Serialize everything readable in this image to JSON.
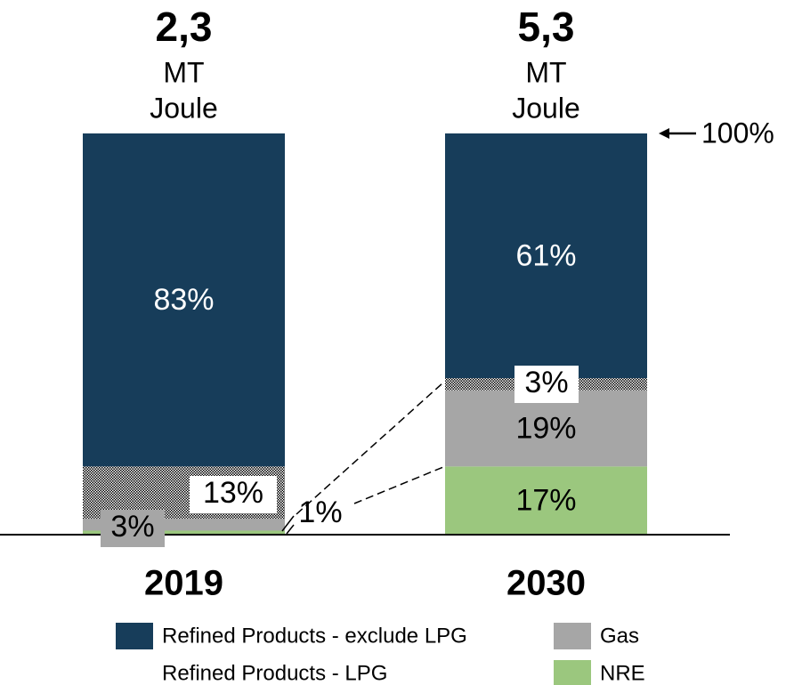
{
  "chart_data": {
    "type": "stacked_bar",
    "categories": [
      "2019",
      "2030"
    ],
    "ylim": [
      0,
      100
    ],
    "series": [
      {
        "name": "NRE",
        "color": "#9bc77e",
        "values": [
          1,
          17
        ],
        "value_labels": [
          "1%",
          "17%"
        ]
      },
      {
        "name": "Gas",
        "color": "#a6a6a6",
        "values": [
          3,
          19
        ],
        "value_labels": [
          "3%",
          "19%"
        ]
      },
      {
        "name": "Refined Products - LPG",
        "color": "#000000",
        "pattern": "checker",
        "values": [
          13,
          3
        ],
        "value_labels": [
          "13%",
          "3%"
        ]
      },
      {
        "name": "Refined Products - exclude LPG",
        "color": "#173d5a",
        "values": [
          83,
          61
        ],
        "value_labels": [
          "83%",
          "61%"
        ]
      }
    ],
    "totals": {
      "values": [
        2.3,
        5.3
      ],
      "value_labels": [
        "2,3",
        "5,3"
      ],
      "unit_lines": [
        "MT",
        "Joule"
      ]
    },
    "annotation": "100%"
  }
}
